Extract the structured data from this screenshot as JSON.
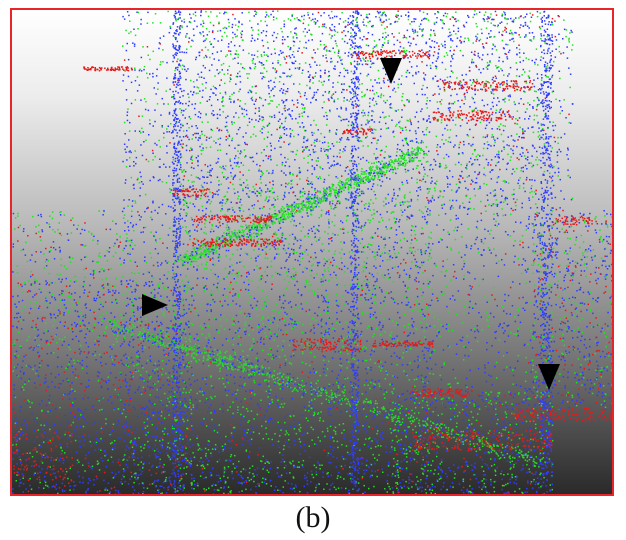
{
  "figure": {
    "caption": "(b)",
    "frame_color": "#e8252a",
    "point_colors": {
      "blue": "#2f3cff",
      "green": "#22e022",
      "red": "#e61a1a"
    },
    "markers": [
      {
        "name": "top-arrow-icon",
        "direction": "down"
      },
      {
        "name": "left-arrow-icon",
        "direction": "right"
      },
      {
        "name": "right-arrow-icon",
        "direction": "down"
      }
    ]
  }
}
